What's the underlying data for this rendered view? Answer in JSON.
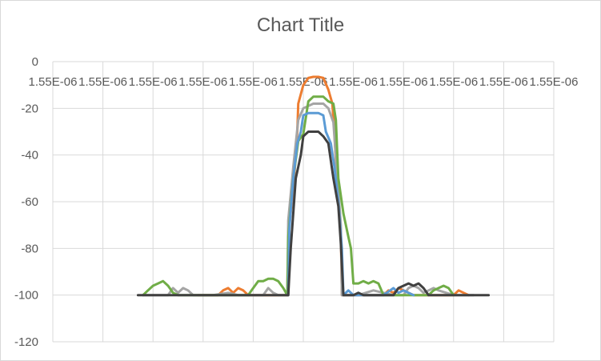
{
  "chart_data": {
    "type": "line",
    "title": "Chart Title",
    "xlabel": "",
    "ylabel": "",
    "x_tick_labels": [
      "1.55E-06",
      "1.55E-06",
      "1.55E-06",
      "1.55E-06",
      "1.55E-06",
      "1.55E-06",
      "1.55E-06",
      "1.55E-06",
      "1.55E-06",
      "1.55E-06",
      "1.55E-06"
    ],
    "y_tick_labels": [
      "0",
      "-20",
      "-40",
      "-60",
      "-80",
      "-100",
      "-120"
    ],
    "x_range": [
      0,
      10
    ],
    "ylim": [
      -120,
      0
    ],
    "grid": true,
    "legend": "none",
    "series": [
      {
        "color": "#ed7d31",
        "points": [
          [
            2.9,
            -100
          ],
          [
            3.3,
            -100
          ],
          [
            3.4,
            -98
          ],
          [
            3.5,
            -97
          ],
          [
            3.6,
            -99
          ],
          [
            3.7,
            -97
          ],
          [
            3.8,
            -98
          ],
          [
            3.9,
            -100
          ],
          [
            4.4,
            -100
          ],
          [
            4.7,
            -100
          ],
          [
            4.72,
            -70
          ],
          [
            4.8,
            -55
          ],
          [
            4.88,
            -30
          ],
          [
            4.9,
            -18
          ],
          [
            5.0,
            -10
          ],
          [
            5.1,
            -7
          ],
          [
            5.2,
            -6.5
          ],
          [
            5.3,
            -6.5
          ],
          [
            5.4,
            -7
          ],
          [
            5.5,
            -12
          ],
          [
            5.58,
            -18
          ],
          [
            5.62,
            -30
          ],
          [
            5.68,
            -55
          ],
          [
            5.75,
            -72
          ],
          [
            5.77,
            -100
          ],
          [
            6.6,
            -100
          ],
          [
            6.7,
            -98
          ],
          [
            6.8,
            -99
          ],
          [
            6.9,
            -97
          ],
          [
            7.0,
            -98
          ],
          [
            7.2,
            -100
          ],
          [
            8.0,
            -100
          ],
          [
            8.1,
            -98
          ],
          [
            8.2,
            -99
          ],
          [
            8.3,
            -100
          ]
        ]
      },
      {
        "color": "#a5a5a5",
        "points": [
          [
            1.8,
            -100
          ],
          [
            2.3,
            -100
          ],
          [
            2.4,
            -97
          ],
          [
            2.5,
            -99
          ],
          [
            2.6,
            -97
          ],
          [
            2.7,
            -98
          ],
          [
            2.8,
            -100
          ],
          [
            3.2,
            -100
          ],
          [
            3.5,
            -99
          ],
          [
            3.7,
            -100
          ],
          [
            4.2,
            -100
          ],
          [
            4.3,
            -97
          ],
          [
            4.4,
            -99
          ],
          [
            4.5,
            -100
          ],
          [
            4.68,
            -100
          ],
          [
            4.7,
            -68
          ],
          [
            4.8,
            -45
          ],
          [
            4.9,
            -25
          ],
          [
            5.0,
            -20
          ],
          [
            5.2,
            -18
          ],
          [
            5.4,
            -18
          ],
          [
            5.5,
            -20
          ],
          [
            5.6,
            -26
          ],
          [
            5.68,
            -50
          ],
          [
            5.75,
            -70
          ],
          [
            5.77,
            -100
          ],
          [
            6.1,
            -100
          ],
          [
            6.4,
            -98
          ],
          [
            6.6,
            -99
          ],
          [
            6.8,
            -100
          ],
          [
            7.0,
            -100
          ],
          [
            7.1,
            -97
          ],
          [
            7.2,
            -96
          ],
          [
            7.3,
            -97
          ],
          [
            7.4,
            -99
          ],
          [
            7.6,
            -97
          ],
          [
            7.7,
            -98
          ],
          [
            8.0,
            -100
          ],
          [
            8.4,
            -100
          ]
        ]
      },
      {
        "color": "#70ad47",
        "points": [
          [
            1.8,
            -100
          ],
          [
            1.9,
            -98
          ],
          [
            2.0,
            -96
          ],
          [
            2.1,
            -95
          ],
          [
            2.2,
            -94
          ],
          [
            2.3,
            -96
          ],
          [
            2.4,
            -99
          ],
          [
            2.5,
            -100
          ],
          [
            3.9,
            -100
          ],
          [
            4.0,
            -97
          ],
          [
            4.1,
            -94
          ],
          [
            4.2,
            -94
          ],
          [
            4.3,
            -93
          ],
          [
            4.4,
            -93
          ],
          [
            4.5,
            -94
          ],
          [
            4.6,
            -97
          ],
          [
            4.68,
            -100
          ],
          [
            4.7,
            -75
          ],
          [
            4.8,
            -50
          ],
          [
            4.9,
            -34
          ],
          [
            5.0,
            -31
          ],
          [
            5.1,
            -17
          ],
          [
            5.2,
            -15
          ],
          [
            5.4,
            -15
          ],
          [
            5.5,
            -17
          ],
          [
            5.6,
            -18
          ],
          [
            5.65,
            -25
          ],
          [
            5.7,
            -50
          ],
          [
            5.8,
            -65
          ],
          [
            5.9,
            -75
          ],
          [
            5.95,
            -80
          ],
          [
            6.0,
            -95
          ],
          [
            6.1,
            -95
          ],
          [
            6.2,
            -94
          ],
          [
            6.3,
            -95
          ],
          [
            6.4,
            -94
          ],
          [
            6.5,
            -95
          ],
          [
            6.6,
            -100
          ],
          [
            7.5,
            -100
          ],
          [
            7.6,
            -98
          ],
          [
            7.7,
            -97
          ],
          [
            7.8,
            -96
          ],
          [
            7.9,
            -97
          ],
          [
            8.0,
            -100
          ]
        ]
      },
      {
        "color": "#5b9bd5",
        "points": [
          [
            4.7,
            -100
          ],
          [
            4.72,
            -72
          ],
          [
            4.8,
            -50
          ],
          [
            4.88,
            -35
          ],
          [
            4.95,
            -30
          ],
          [
            5.0,
            -23
          ],
          [
            5.1,
            -22
          ],
          [
            5.3,
            -22
          ],
          [
            5.4,
            -23
          ],
          [
            5.45,
            -30
          ],
          [
            5.55,
            -35
          ],
          [
            5.62,
            -45
          ],
          [
            5.7,
            -60
          ],
          [
            5.77,
            -80
          ],
          [
            5.8,
            -100
          ],
          [
            5.9,
            -98
          ],
          [
            6.0,
            -100
          ],
          [
            6.6,
            -100
          ],
          [
            6.8,
            -97
          ],
          [
            6.9,
            -99
          ],
          [
            7.0,
            -98
          ],
          [
            7.1,
            -99
          ],
          [
            7.2,
            -100
          ]
        ]
      },
      {
        "color": "#404040",
        "points": [
          [
            1.7,
            -100
          ],
          [
            4.7,
            -100
          ],
          [
            4.75,
            -80
          ],
          [
            4.85,
            -50
          ],
          [
            4.95,
            -40
          ],
          [
            5.0,
            -32
          ],
          [
            5.1,
            -30
          ],
          [
            5.3,
            -30
          ],
          [
            5.4,
            -32
          ],
          [
            5.5,
            -35
          ],
          [
            5.6,
            -50
          ],
          [
            5.7,
            -62
          ],
          [
            5.75,
            -78
          ],
          [
            5.8,
            -100
          ],
          [
            6.0,
            -100
          ],
          [
            6.1,
            -99
          ],
          [
            6.2,
            -100
          ],
          [
            6.8,
            -100
          ],
          [
            6.9,
            -97
          ],
          [
            7.0,
            -96
          ],
          [
            7.1,
            -95
          ],
          [
            7.2,
            -96
          ],
          [
            7.3,
            -95
          ],
          [
            7.4,
            -97
          ],
          [
            7.5,
            -100
          ],
          [
            7.9,
            -100
          ],
          [
            8.7,
            -100
          ]
        ]
      }
    ]
  }
}
